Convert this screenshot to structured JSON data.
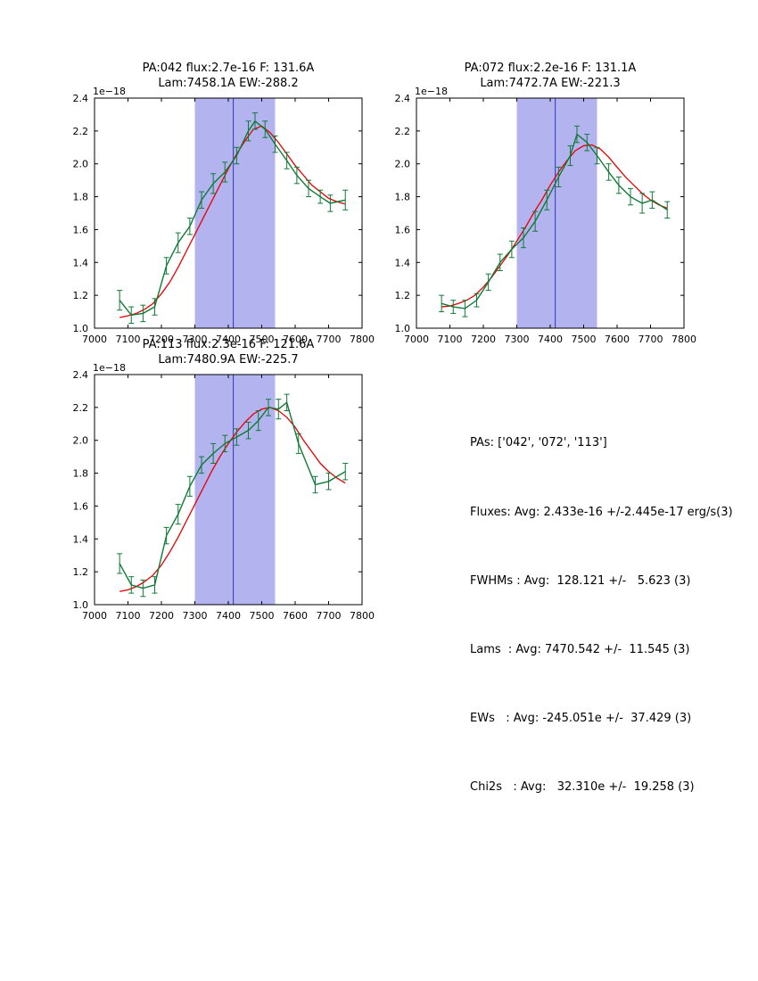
{
  "page": {
    "background": "#ffffff"
  },
  "stats_panel": {
    "lines": [
      "PAs: ['042', '072', '113']",
      "Fluxes: Avg: 2.433e-16 +/-2.445e-17 erg/s(3)",
      "FWHMs : Avg:  128.121 +/-   5.623 (3)",
      "Lams  : Avg: 7470.542 +/-  11.545 (3)",
      "EWs   : Avg: -245.051e +/-  37.429 (3)",
      "Chi2s   : Avg:   32.310e +/-  19.258 (3)"
    ]
  },
  "chart_data": [
    {
      "type": "line",
      "pa": "042",
      "title_line1": "PA:042 flux:2.7e-16 F: 131.6A",
      "title_line2": "Lam:7458.1A EW:-288.2",
      "offset_label": "1e−18",
      "xlim": [
        7000,
        7800
      ],
      "ylim": [
        1.0,
        2.4
      ],
      "xticks": [
        7000,
        7100,
        7200,
        7300,
        7400,
        7500,
        7600,
        7700,
        7800
      ],
      "yticks": [
        1.0,
        1.2,
        1.4,
        1.6,
        1.8,
        2.0,
        2.2,
        2.4
      ],
      "span": [
        7300,
        7540
      ],
      "span_color": "#b3b3f0",
      "vline": 7415,
      "vline_color": "#3333bb",
      "legend": "off",
      "data_series": {
        "name": "spectrum-data",
        "color": "#107a36",
        "x": [
          7075,
          7110,
          7145,
          7180,
          7215,
          7250,
          7285,
          7320,
          7355,
          7390,
          7425,
          7460,
          7480,
          7510,
          7540,
          7575,
          7605,
          7640,
          7675,
          7705,
          7750
        ],
        "y": [
          1.17,
          1.08,
          1.09,
          1.13,
          1.38,
          1.52,
          1.62,
          1.78,
          1.88,
          1.95,
          2.05,
          2.2,
          2.26,
          2.21,
          2.12,
          2.02,
          1.93,
          1.85,
          1.8,
          1.76,
          1.78
        ],
        "yerr": [
          0.06,
          0.05,
          0.05,
          0.05,
          0.05,
          0.06,
          0.05,
          0.05,
          0.06,
          0.06,
          0.05,
          0.06,
          0.05,
          0.05,
          0.05,
          0.05,
          0.05,
          0.05,
          0.04,
          0.05,
          0.06
        ]
      },
      "fit_series": {
        "name": "gaussian-fit",
        "color": "#e60000",
        "x": [
          7075,
          7100,
          7125,
          7150,
          7175,
          7200,
          7225,
          7250,
          7275,
          7300,
          7325,
          7350,
          7375,
          7400,
          7425,
          7450,
          7475,
          7500,
          7525,
          7550,
          7575,
          7600,
          7625,
          7650,
          7675,
          7700,
          7725,
          7750
        ],
        "y": [
          1.065,
          1.075,
          1.09,
          1.115,
          1.15,
          1.21,
          1.28,
          1.37,
          1.47,
          1.57,
          1.67,
          1.77,
          1.87,
          1.97,
          2.06,
          2.14,
          2.21,
          2.23,
          2.19,
          2.13,
          2.06,
          1.99,
          1.93,
          1.87,
          1.83,
          1.79,
          1.77,
          1.755
        ]
      }
    },
    {
      "type": "line",
      "pa": "072",
      "title_line1": "PA:072 flux:2.2e-16 F: 131.1A",
      "title_line2": "Lam:7472.7A EW:-221.3",
      "offset_label": "1e−18",
      "xlim": [
        7000,
        7800
      ],
      "ylim": [
        1.0,
        2.4
      ],
      "xticks": [
        7000,
        7100,
        7200,
        7300,
        7400,
        7500,
        7600,
        7700,
        7800
      ],
      "yticks": [
        1.0,
        1.2,
        1.4,
        1.6,
        1.8,
        2.0,
        2.2,
        2.4
      ],
      "span": [
        7300,
        7540
      ],
      "span_color": "#b3b3f0",
      "vline": 7415,
      "vline_color": "#3333bb",
      "legend": "off",
      "data_series": {
        "name": "spectrum-data",
        "color": "#107a36",
        "x": [
          7075,
          7110,
          7145,
          7180,
          7215,
          7250,
          7285,
          7320,
          7355,
          7390,
          7425,
          7460,
          7480,
          7510,
          7540,
          7575,
          7605,
          7640,
          7675,
          7705,
          7750
        ],
        "y": [
          1.15,
          1.13,
          1.12,
          1.17,
          1.28,
          1.4,
          1.48,
          1.55,
          1.65,
          1.78,
          1.92,
          2.05,
          2.18,
          2.13,
          2.05,
          1.95,
          1.87,
          1.8,
          1.76,
          1.78,
          1.72
        ],
        "yerr": [
          0.05,
          0.04,
          0.05,
          0.04,
          0.05,
          0.05,
          0.05,
          0.06,
          0.06,
          0.06,
          0.06,
          0.06,
          0.05,
          0.05,
          0.05,
          0.05,
          0.05,
          0.05,
          0.06,
          0.05,
          0.05
        ]
      },
      "fit_series": {
        "name": "gaussian-fit",
        "color": "#e60000",
        "x": [
          7075,
          7100,
          7125,
          7150,
          7175,
          7200,
          7225,
          7250,
          7275,
          7300,
          7325,
          7350,
          7375,
          7400,
          7425,
          7450,
          7475,
          7500,
          7525,
          7550,
          7575,
          7600,
          7625,
          7650,
          7675,
          7700,
          7725,
          7750
        ],
        "y": [
          1.13,
          1.135,
          1.15,
          1.17,
          1.2,
          1.25,
          1.31,
          1.38,
          1.45,
          1.53,
          1.61,
          1.7,
          1.78,
          1.87,
          1.95,
          2.02,
          2.08,
          2.11,
          2.115,
          2.09,
          2.04,
          1.98,
          1.92,
          1.87,
          1.82,
          1.78,
          1.75,
          1.73
        ]
      }
    },
    {
      "type": "line",
      "pa": "113",
      "title_line1": "PA:113 flux:2.3e-16 F: 121.6A",
      "title_line2": "Lam:7480.9A EW:-225.7",
      "offset_label": "1e−18",
      "xlim": [
        7000,
        7800
      ],
      "ylim": [
        1.0,
        2.4
      ],
      "xticks": [
        7000,
        7100,
        7200,
        7300,
        7400,
        7500,
        7600,
        7700,
        7800
      ],
      "yticks": [
        1.0,
        1.2,
        1.4,
        1.6,
        1.8,
        2.0,
        2.2,
        2.4
      ],
      "span": [
        7300,
        7540
      ],
      "span_color": "#b3b3f0",
      "vline": 7415,
      "vline_color": "#3333bb",
      "legend": "off",
      "data_series": {
        "name": "spectrum-data",
        "color": "#107a36",
        "x": [
          7075,
          7110,
          7145,
          7180,
          7215,
          7250,
          7285,
          7320,
          7355,
          7390,
          7425,
          7460,
          7490,
          7520,
          7550,
          7575,
          7610,
          7660,
          7700,
          7750
        ],
        "y": [
          1.25,
          1.12,
          1.1,
          1.12,
          1.42,
          1.55,
          1.72,
          1.85,
          1.92,
          1.98,
          2.02,
          2.06,
          2.12,
          2.2,
          2.19,
          2.23,
          1.98,
          1.73,
          1.75,
          1.81
        ],
        "yerr": [
          0.06,
          0.05,
          0.05,
          0.05,
          0.05,
          0.06,
          0.06,
          0.05,
          0.06,
          0.05,
          0.05,
          0.05,
          0.06,
          0.05,
          0.06,
          0.05,
          0.06,
          0.05,
          0.05,
          0.05
        ]
      },
      "fit_series": {
        "name": "gaussian-fit",
        "color": "#e60000",
        "x": [
          7075,
          7100,
          7125,
          7150,
          7175,
          7200,
          7225,
          7250,
          7275,
          7300,
          7325,
          7350,
          7375,
          7400,
          7425,
          7450,
          7475,
          7500,
          7525,
          7550,
          7575,
          7600,
          7625,
          7650,
          7675,
          7700,
          7725,
          7750
        ],
        "y": [
          1.08,
          1.09,
          1.11,
          1.14,
          1.18,
          1.24,
          1.32,
          1.41,
          1.51,
          1.61,
          1.71,
          1.81,
          1.9,
          1.98,
          2.05,
          2.11,
          2.16,
          2.19,
          2.2,
          2.18,
          2.14,
          2.08,
          2.0,
          1.93,
          1.86,
          1.81,
          1.77,
          1.74
        ]
      }
    }
  ]
}
